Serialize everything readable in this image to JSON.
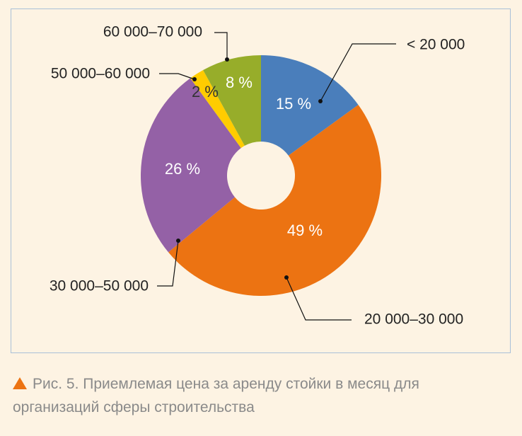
{
  "chart_data": {
    "type": "donut",
    "title": "Рис. 5. Приемлемая цена за аренду стойки в месяц для организаций сферы строительства",
    "categories": [
      "< 20 000",
      "20 000–30 000",
      "30 000–50 000",
      "50 000–60 000",
      "60 000–70 000"
    ],
    "values": [
      15,
      49,
      26,
      2,
      8
    ],
    "value_labels": [
      "15 %",
      "49 %",
      "26 %",
      "2 %",
      "8 %"
    ],
    "colors": [
      "#4a7ebb",
      "#ec7312",
      "#9461a6",
      "#ffcc00",
      "#97ad2a"
    ]
  }
}
